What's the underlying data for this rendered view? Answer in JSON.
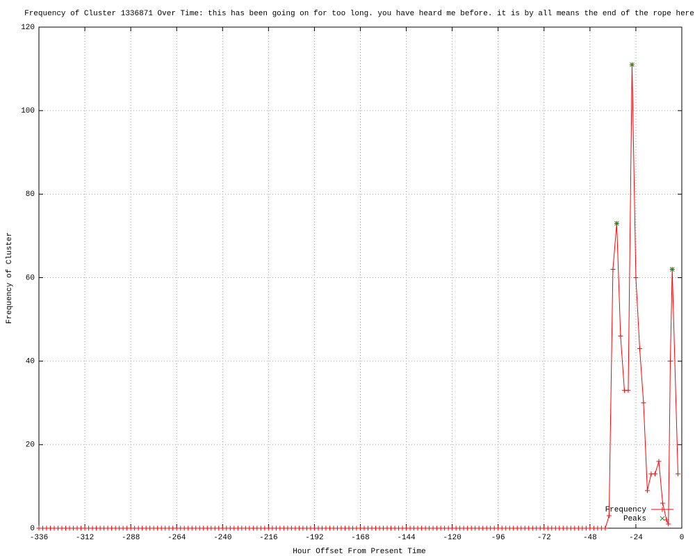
{
  "chart_data": {
    "type": "line",
    "title": "Frequency of Cluster 1336871 Over Time: this has been going on for too long. you have heard me before. it is by all means the end of the rope here",
    "x_label": "Hour Offset From Present Time",
    "y_label": "Frequency of Cluster",
    "xlim": [
      -336,
      0
    ],
    "ylim": [
      0,
      120
    ],
    "xticks": [
      -336,
      -312,
      -288,
      -264,
      -240,
      -216,
      -192,
      -168,
      -144,
      -120,
      -96,
      -72,
      -48,
      -24,
      0
    ],
    "yticks": [
      0,
      20,
      40,
      60,
      80,
      100,
      120
    ],
    "grid": true,
    "legend": "bottom-right",
    "series": [
      {
        "name": "Frequency",
        "color": "#ff0000",
        "style": "linespoints",
        "marker": "+",
        "x": [
          -336,
          -334,
          -332,
          -330,
          -328,
          -326,
          -324,
          -322,
          -320,
          -318,
          -316,
          -314,
          -312,
          -310,
          -308,
          -306,
          -304,
          -302,
          -300,
          -298,
          -296,
          -294,
          -292,
          -290,
          -288,
          -286,
          -284,
          -282,
          -280,
          -278,
          -276,
          -274,
          -272,
          -270,
          -268,
          -266,
          -264,
          -262,
          -260,
          -258,
          -256,
          -254,
          -252,
          -250,
          -248,
          -246,
          -244,
          -242,
          -240,
          -238,
          -236,
          -234,
          -232,
          -230,
          -228,
          -226,
          -224,
          -222,
          -220,
          -218,
          -216,
          -214,
          -212,
          -210,
          -208,
          -206,
          -204,
          -202,
          -200,
          -198,
          -196,
          -194,
          -192,
          -190,
          -188,
          -186,
          -184,
          -182,
          -180,
          -178,
          -176,
          -174,
          -172,
          -170,
          -168,
          -166,
          -164,
          -162,
          -160,
          -158,
          -156,
          -154,
          -152,
          -150,
          -148,
          -146,
          -144,
          -142,
          -140,
          -138,
          -136,
          -134,
          -132,
          -130,
          -128,
          -126,
          -124,
          -122,
          -120,
          -118,
          -116,
          -114,
          -112,
          -110,
          -108,
          -106,
          -104,
          -102,
          -100,
          -98,
          -96,
          -94,
          -92,
          -90,
          -88,
          -86,
          -84,
          -82,
          -80,
          -78,
          -76,
          -74,
          -72,
          -70,
          -68,
          -66,
          -64,
          -62,
          -60,
          -58,
          -56,
          -54,
          -52,
          -50,
          -48,
          -46,
          -44,
          -42,
          -40,
          -38,
          -36,
          -34,
          -32,
          -30,
          -28,
          -26,
          -24,
          -22,
          -20,
          -18,
          -16,
          -14,
          -12,
          -10,
          -8,
          -7,
          -6,
          -5,
          -2
        ],
        "values": [
          0,
          0,
          0,
          0,
          0,
          0,
          0,
          0,
          0,
          0,
          0,
          0,
          0,
          0,
          0,
          0,
          0,
          0,
          0,
          0,
          0,
          0,
          0,
          0,
          0,
          0,
          0,
          0,
          0,
          0,
          0,
          0,
          0,
          0,
          0,
          0,
          0,
          0,
          0,
          0,
          0,
          0,
          0,
          0,
          0,
          0,
          0,
          0,
          0,
          0,
          0,
          0,
          0,
          0,
          0,
          0,
          0,
          0,
          0,
          0,
          0,
          0,
          0,
          0,
          0,
          0,
          0,
          0,
          0,
          0,
          0,
          0,
          0,
          0,
          0,
          0,
          0,
          0,
          0,
          0,
          0,
          0,
          0,
          0,
          0,
          0,
          0,
          0,
          0,
          0,
          0,
          0,
          0,
          0,
          0,
          0,
          0,
          0,
          0,
          0,
          0,
          0,
          0,
          0,
          0,
          0,
          0,
          0,
          0,
          0,
          0,
          0,
          0,
          0,
          0,
          0,
          0,
          0,
          0,
          0,
          0,
          0,
          0,
          0,
          0,
          0,
          0,
          0,
          0,
          0,
          0,
          0,
          0,
          0,
          0,
          0,
          0,
          0,
          0,
          0,
          0,
          0,
          0,
          0,
          0,
          0,
          0,
          0,
          0,
          3,
          62,
          73,
          46,
          33,
          33,
          111,
          60,
          43,
          30,
          9,
          13,
          13,
          16,
          6,
          2,
          1,
          40,
          62,
          13
        ]
      },
      {
        "name": "Peaks",
        "color": "#228b22",
        "style": "points",
        "marker": "x",
        "x": [
          -34,
          -26,
          -5
        ],
        "values": [
          73,
          111,
          62
        ]
      }
    ]
  }
}
